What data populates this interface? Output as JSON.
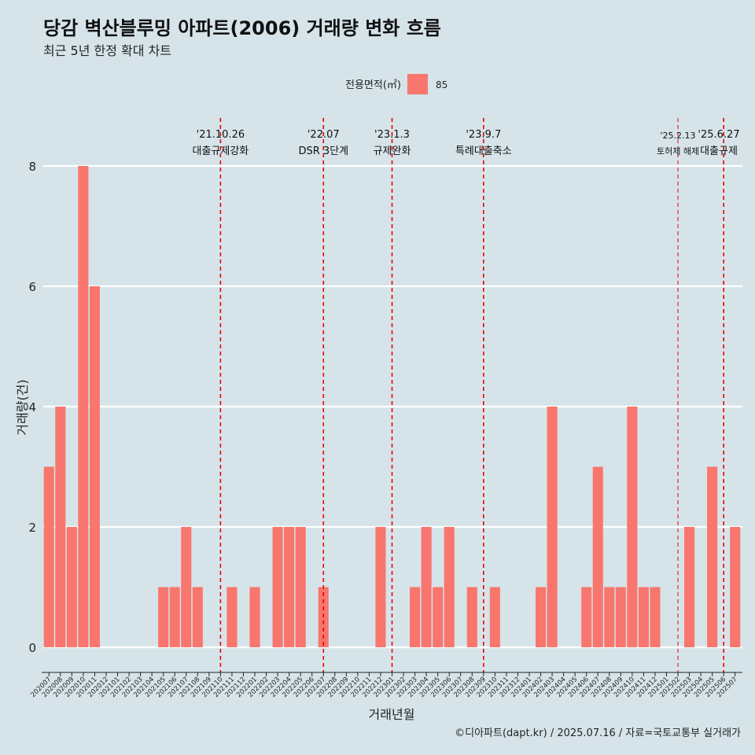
{
  "page": {
    "title": "당감 벽산블루밍 아파트(2006) 거래량 변화 흐름",
    "subtitle": "최근 5년 한정 확대 차트",
    "caption": "©디아파트(dapt.kr) / 2025.07.16 / 자료=국토교통부 실거래가"
  },
  "legend": {
    "title": "전용면적(㎡)",
    "entries": [
      {
        "label": "85",
        "color": "#f8766d"
      }
    ]
  },
  "chart_data": {
    "type": "bar",
    "xlabel": "거래년월",
    "ylabel": "거래량(건)",
    "ylim": [
      0,
      8
    ],
    "yticks": [
      0,
      2,
      4,
      6,
      8
    ],
    "grid": true,
    "legend_position": "top",
    "bar_color": "#f8766d",
    "categories": [
      "202007",
      "202008",
      "202009",
      "202010",
      "202011",
      "202012",
      "202101",
      "202102",
      "202103",
      "202104",
      "202105",
      "202106",
      "202107",
      "202108",
      "202109",
      "202110",
      "202111",
      "202112",
      "202201",
      "202202",
      "202203",
      "202204",
      "202205",
      "202206",
      "202207",
      "202208",
      "202209",
      "202210",
      "202211",
      "202212",
      "202301",
      "202302",
      "202303",
      "202304",
      "202305",
      "202306",
      "202307",
      "202308",
      "202309",
      "202310",
      "202311",
      "202312",
      "202401",
      "202402",
      "202403",
      "202404",
      "202405",
      "202406",
      "202407",
      "202408",
      "202409",
      "202410",
      "202411",
      "202412",
      "202501",
      "202502",
      "202503",
      "202504",
      "202505",
      "202506",
      "202507"
    ],
    "series": [
      {
        "values": [
          3,
          4,
          2,
          8,
          6,
          0,
          0,
          0,
          0,
          0,
          1,
          1,
          2,
          1,
          0,
          0,
          1,
          0,
          1,
          0,
          2,
          2,
          2,
          0,
          1,
          0,
          0,
          0,
          0,
          2,
          0,
          0,
          1,
          2,
          1,
          2,
          0,
          1,
          0,
          1,
          0,
          0,
          0,
          1,
          4,
          0,
          0,
          1,
          3,
          1,
          1,
          4,
          1,
          1,
          0,
          0,
          2,
          0,
          3,
          0,
          2
        ]
      }
    ],
    "annotations": [
      {
        "x": "202110",
        "date": "'21.10.26",
        "label": "대출규제강화",
        "size": "large"
      },
      {
        "x": "202207",
        "date": "'22.07",
        "label": "DSR 3단계",
        "size": "large"
      },
      {
        "x": "202301",
        "date": "'23.1.3",
        "label": "규제완화",
        "size": "large"
      },
      {
        "x": "202309",
        "date": "'23.9.7",
        "label": "특례대출축소",
        "size": "large"
      },
      {
        "x": "202502",
        "date": "'25.2.13",
        "label": "토허제 해제",
        "size": "small"
      },
      {
        "x": "202506",
        "date": "'25.6.27",
        "label": "대출규제",
        "size": "large"
      }
    ]
  }
}
